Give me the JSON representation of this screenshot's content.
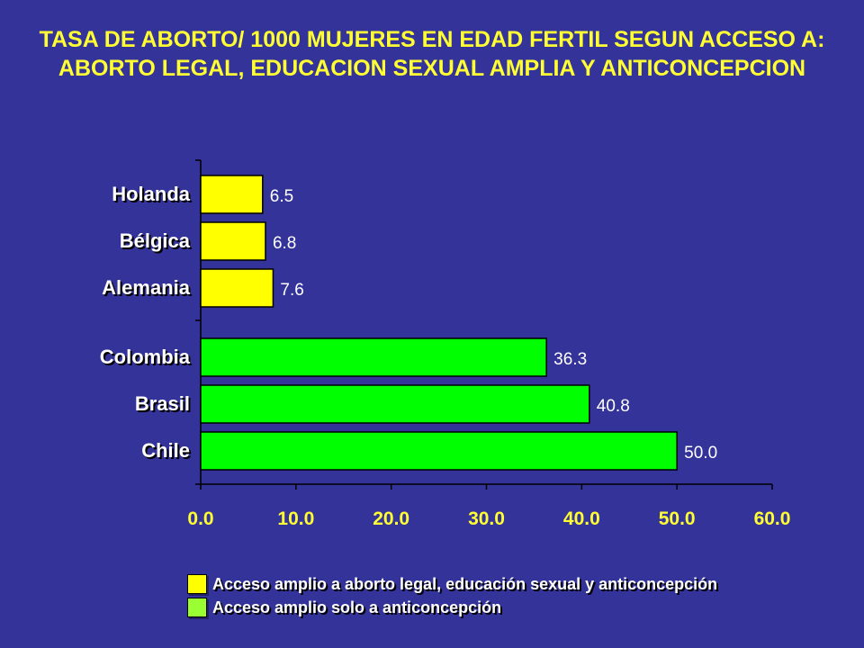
{
  "title": "TASA DE ABORTO/ 1000 MUJERES EN EDAD FERTIL SEGUN ACCESO A: ABORTO LEGAL, EDUCACION SEXUAL AMPLIA Y ANTICONCEPCION",
  "chart_data": {
    "type": "bar",
    "orientation": "horizontal",
    "title": "TASA DE ABORTO/ 1000 MUJERES EN EDAD FERTIL SEGUN ACCESO A: ABORTO LEGAL, EDUCACION SEXUAL AMPLIA Y ANTICONCEPCION",
    "xlim": [
      0,
      60
    ],
    "xticks": [
      "0.0",
      "10.0",
      "20.0",
      "30.0",
      "40.0",
      "50.0",
      "60.0"
    ],
    "grid": false,
    "legend_position": "bottom",
    "groups": [
      {
        "legend_label": "Acceso amplio a aborto legal, educación sexual y anticoncepción",
        "color": "#ffff00",
        "bars": [
          {
            "category": "Holanda",
            "value": 6.5,
            "label": "6.5"
          },
          {
            "category": "Bélgica",
            "value": 6.8,
            "label": "6.8"
          },
          {
            "category": "Alemania",
            "value": 7.6,
            "label": "7.6"
          }
        ]
      },
      {
        "legend_label": "Acceso amplio solo a anticoncepción",
        "color": "#00ff00",
        "bars": [
          {
            "category": "Colombia",
            "value": 36.3,
            "label": "36.3"
          },
          {
            "category": "Brasil",
            "value": 40.8,
            "label": "40.8"
          },
          {
            "category": "Chile",
            "value": 50.0,
            "label": "50.0"
          }
        ]
      }
    ]
  },
  "legend": {
    "items": [
      {
        "label": "Acceso amplio a aborto legal, educación sexual y anticoncepción",
        "color": "#ffff00"
      },
      {
        "label": "Acceso amplio solo a anticoncepción",
        "color": "#99ff33"
      }
    ]
  }
}
